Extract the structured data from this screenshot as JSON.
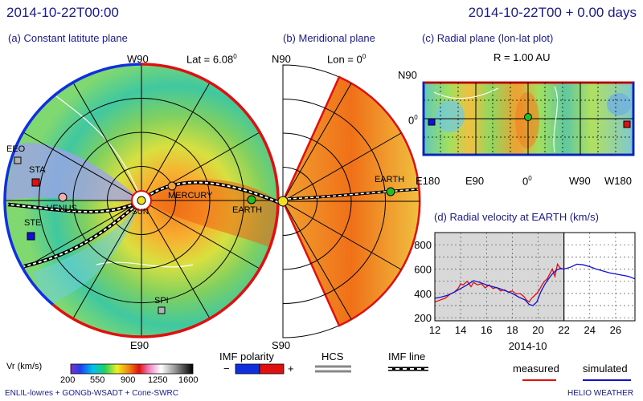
{
  "header": {
    "timestamp_left": "2014-10-22T00:00",
    "timestamp_right": "2014-10-22T00 + 0.00 days"
  },
  "panel_a": {
    "title": "(a) Constant latitute plane",
    "lat_label": "Lat = 6.08",
    "lat_sup": "0",
    "compass_top": "W90",
    "compass_bottom": "E90",
    "bodies": [
      "EARTH",
      "MERCURY",
      "VENUS",
      "SUN",
      "STA",
      "STE",
      "EEO",
      "SPI"
    ]
  },
  "panel_b": {
    "title": "(b) Meridional plane",
    "lon_label": "Lon = 0",
    "lon_sup": "0",
    "top": "N90",
    "bottom": "S90",
    "earth": "EARTH"
  },
  "panel_c": {
    "title": "(c) Radial plane (lon-lat plot)",
    "r_label": "R = 1.00 AU",
    "lat_top": "N90",
    "lat_mid": "0",
    "lat_mid_sup": "0",
    "lon_ticks": [
      "E180",
      "E90",
      "0",
      "W90",
      "W180"
    ],
    "lon_zero_sup": "0"
  },
  "panel_d": {
    "title": "(d) Radial velocity at EARTH (km/s)",
    "xlabel": "2014-10"
  },
  "colorbar": {
    "label": "Vr (km/s)",
    "ticks": [
      "200",
      "550",
      "900",
      "1250",
      "1600"
    ]
  },
  "legend": {
    "imf_polarity": "IMF polarity",
    "minus": "−",
    "plus": "+",
    "hcs": "HCS",
    "imf_line": "IMF line",
    "measured": "measured",
    "simulated": "simulated",
    "measured_color": "#e01010",
    "simulated_color": "#1010d0"
  },
  "footer": {
    "left": "ENLIL-lowres + GONGb-WSADT + Cone-SWRC",
    "right": "HELIO WEATHER"
  },
  "chart_data": {
    "type": "line",
    "title": "(d) Radial velocity at EARTH (km/s)",
    "xlabel": "2014-10",
    "ylabel": "",
    "xlim": [
      12,
      27.5
    ],
    "ylim": [
      175,
      900
    ],
    "xticks": [
      12,
      14,
      16,
      18,
      20,
      22,
      24,
      26
    ],
    "yticks": [
      200,
      400,
      600,
      800
    ],
    "current_x": 22,
    "series": [
      {
        "name": "measured",
        "color": "#e01010",
        "x": [
          12.0,
          12.4,
          12.8,
          13.2,
          13.5,
          13.8,
          14.0,
          14.2,
          14.5,
          14.8,
          15.0,
          15.3,
          15.6,
          15.9,
          16.2,
          16.5,
          16.8,
          17.1,
          17.4,
          17.7,
          18.0,
          18.3,
          18.6,
          18.9,
          19.1,
          19.3,
          19.5,
          19.7,
          19.9,
          20.1,
          20.3,
          20.5,
          20.7,
          20.9,
          21.1,
          21.3,
          21.5,
          21.7,
          21.9
        ],
        "y": [
          330,
          345,
          360,
          395,
          410,
          440,
          480,
          470,
          500,
          455,
          490,
          470,
          480,
          445,
          470,
          440,
          450,
          420,
          430,
          410,
          420,
          395,
          400,
          375,
          345,
          330,
          360,
          380,
          400,
          430,
          470,
          500,
          520,
          560,
          600,
          540,
          640,
          610,
          600
        ]
      },
      {
        "name": "simulated",
        "color": "#1010d0",
        "x": [
          12.0,
          12.5,
          13.0,
          13.5,
          14.0,
          14.5,
          15.0,
          15.5,
          16.0,
          16.5,
          17.0,
          17.5,
          18.0,
          18.5,
          19.0,
          19.3,
          19.6,
          19.9,
          20.2,
          20.5,
          20.8,
          21.1,
          21.4,
          21.7,
          22.0,
          22.5,
          23.0,
          23.5,
          24.0,
          24.5,
          25.0,
          25.5,
          26.0,
          26.5,
          27.0,
          27.5
        ],
        "y": [
          360,
          370,
          385,
          410,
          440,
          470,
          505,
          490,
          470,
          455,
          440,
          420,
          400,
          370,
          345,
          310,
          300,
          330,
          410,
          470,
          520,
          560,
          590,
          605,
          600,
          615,
          640,
          635,
          620,
          600,
          585,
          570,
          560,
          550,
          540,
          520
        ]
      }
    ]
  }
}
